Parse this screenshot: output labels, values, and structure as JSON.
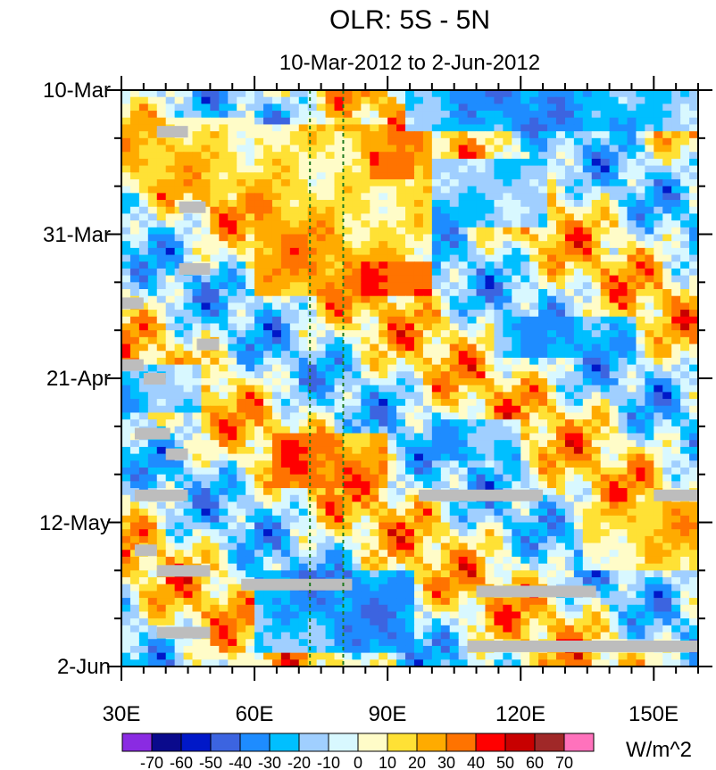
{
  "chart_data": {
    "type": "heatmap",
    "title": "OLR: 5S - 5N",
    "subtitle": "10-Mar-2012 to 2-Jun-2012",
    "x_range": [
      30,
      160
    ],
    "x_ticks": [
      30,
      60,
      90,
      120,
      150
    ],
    "x_tick_labels": [
      "30E",
      "60E",
      "90E",
      "120E",
      "150E"
    ],
    "y_range_days": [
      0,
      84
    ],
    "y_ticks_days": [
      0,
      21,
      42,
      63,
      84
    ],
    "y_tick_labels": [
      "10-Mar",
      "31-Mar",
      "21-Apr",
      "12-May",
      "2-Jun"
    ],
    "reference_lines_lon": [
      72.5,
      80
    ],
    "colorbar": {
      "units": "W/m^2",
      "labels": [
        "-70",
        "-60",
        "-50",
        "-40",
        "-30",
        "-20",
        "-10",
        "0",
        "10",
        "20",
        "30",
        "40",
        "50",
        "60",
        "70"
      ],
      "colors": [
        "#8a2be2",
        "#0a0a8c",
        "#0018c8",
        "#3c64e0",
        "#1e8cff",
        "#00bfff",
        "#a0cfff",
        "#d8f8ff",
        "#fffcc8",
        "#ffe135",
        "#ffab00",
        "#ff7300",
        "#ff0000",
        "#c80000",
        "#a02828",
        "#ff72bc"
      ]
    },
    "feature_bands": [
      {
        "day0": 4,
        "day1": 15,
        "lon0": 30,
        "lon1": 60,
        "value": 20
      },
      {
        "day0": 5,
        "day1": 30,
        "lon0": 60,
        "lon1": 100,
        "value": 32
      },
      {
        "day0": 9,
        "day1": 13,
        "lon0": 86,
        "lon1": 96,
        "value": 48
      },
      {
        "day0": 25,
        "day1": 30,
        "lon0": 85,
        "lon1": 100,
        "value": 52
      },
      {
        "day0": 40,
        "day1": 47,
        "lon0": 30,
        "lon1": 48,
        "value": -42
      },
      {
        "day0": 50,
        "day1": 58,
        "lon0": 65,
        "lon1": 90,
        "value": 45
      },
      {
        "day0": 10,
        "day1": 20,
        "lon0": 100,
        "lon1": 125,
        "value": -40
      },
      {
        "day0": 33,
        "day1": 39,
        "lon0": 115,
        "lon1": 145,
        "value": -35
      },
      {
        "day0": 48,
        "day1": 54,
        "lon0": 100,
        "lon1": 120,
        "value": -35
      },
      {
        "day0": 70,
        "day1": 82,
        "lon0": 60,
        "lon1": 95,
        "value": -45
      },
      {
        "day0": 60,
        "day1": 70,
        "lon0": 135,
        "lon1": 160,
        "value": 22
      },
      {
        "day0": 0,
        "day1": 6,
        "lon0": 95,
        "lon1": 160,
        "value": -45
      }
    ],
    "missing_segments": [
      {
        "day": 6,
        "lon0": 38,
        "lon1": 45
      },
      {
        "day": 17,
        "lon0": 43,
        "lon1": 49
      },
      {
        "day": 26,
        "lon0": 43,
        "lon1": 50
      },
      {
        "day": 31,
        "lon0": 30,
        "lon1": 35
      },
      {
        "day": 37,
        "lon0": 47,
        "lon1": 52
      },
      {
        "day": 40,
        "lon0": 30,
        "lon1": 35
      },
      {
        "day": 42,
        "lon0": 35,
        "lon1": 40
      },
      {
        "day": 50,
        "lon0": 33,
        "lon1": 41
      },
      {
        "day": 53,
        "lon0": 40,
        "lon1": 45
      },
      {
        "day": 59,
        "lon0": 33,
        "lon1": 45
      },
      {
        "day": 59,
        "lon0": 97,
        "lon1": 125
      },
      {
        "day": 59,
        "lon0": 150,
        "lon1": 160
      },
      {
        "day": 67,
        "lon0": 33,
        "lon1": 38
      },
      {
        "day": 70,
        "lon0": 38,
        "lon1": 50
      },
      {
        "day": 72,
        "lon0": 57,
        "lon1": 82
      },
      {
        "day": 73,
        "lon0": 110,
        "lon1": 137
      },
      {
        "day": 79,
        "lon0": 38,
        "lon1": 50
      },
      {
        "day": 81,
        "lon0": 108,
        "lon1": 160
      }
    ]
  }
}
